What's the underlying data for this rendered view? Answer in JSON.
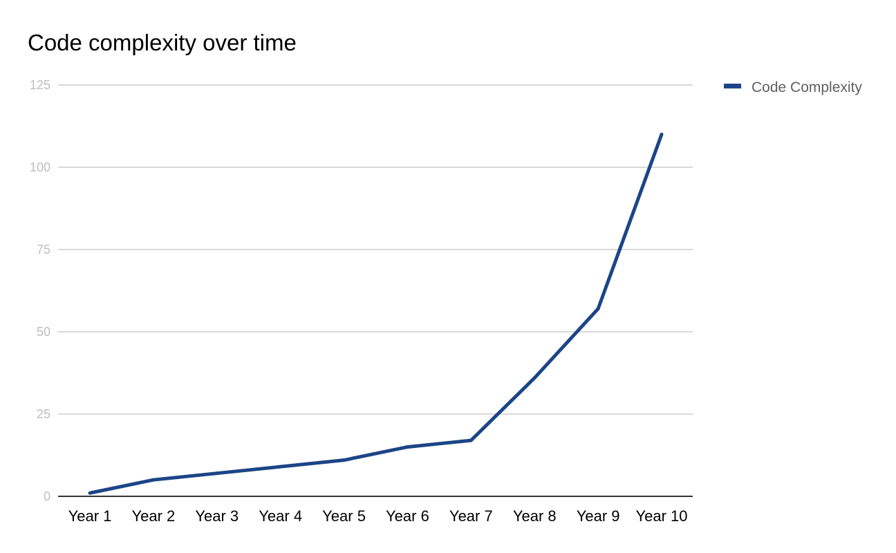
{
  "chart_data": {
    "type": "line",
    "title": "Code complexity over time",
    "xlabel": "",
    "ylabel": "",
    "categories": [
      "Year 1",
      "Year 2",
      "Year 3",
      "Year 4",
      "Year 5",
      "Year 6",
      "Year 7",
      "Year 8",
      "Year 9",
      "Year 10"
    ],
    "series": [
      {
        "name": "Code Complexity",
        "values": [
          1,
          5,
          7,
          9,
          11,
          15,
          17,
          36,
          57,
          110
        ]
      }
    ],
    "ylim": [
      0,
      125
    ],
    "yticks": [
      0,
      25,
      50,
      75,
      100,
      125
    ],
    "grid": true,
    "legend_position": "right-top",
    "colors": {
      "series": "#1c4587",
      "grid": "#cccccc",
      "axis": "#333333",
      "ytick_text": "#bdbdbd"
    }
  }
}
